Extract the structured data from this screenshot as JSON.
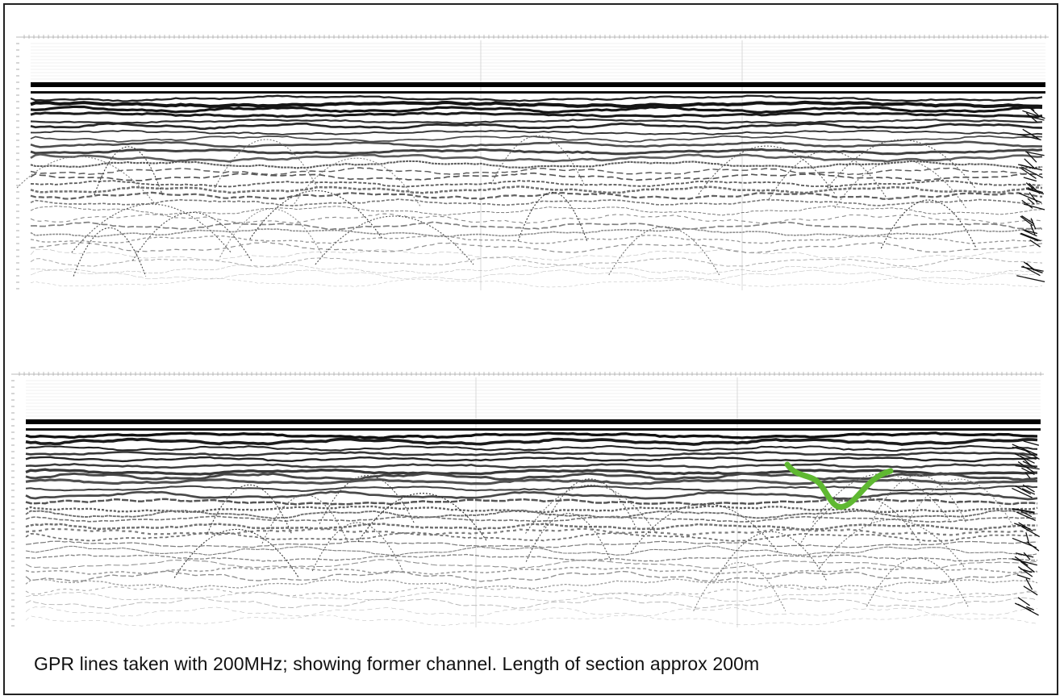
{
  "figure": {
    "caption": "GPR lines taken with 200MHz; showing former channel.  Length of section approx 200m"
  },
  "colors": {
    "frame": "#222222",
    "trace_dark": "#000000",
    "annotation": "#5fb832"
  },
  "panels": [
    {
      "name": "upper-radargram",
      "annotated": false
    },
    {
      "name": "lower-radargram",
      "annotated": true
    }
  ]
}
